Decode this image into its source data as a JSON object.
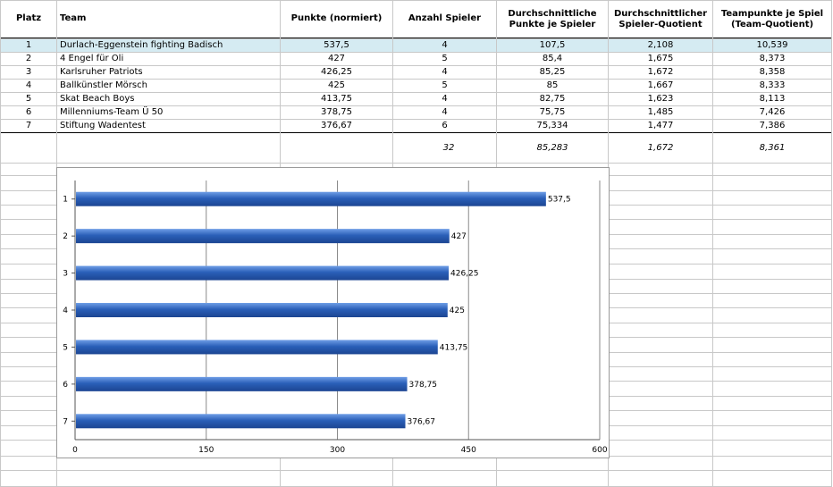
{
  "table": {
    "headers": {
      "platz": "Platz",
      "team": "Team",
      "punkte": "Punkte (normiert)",
      "anzahl": "Anzahl Spieler",
      "dpps_1": "Durchschnittliche",
      "dpps_2": "Punkte je Spieler",
      "dsq_1": "Durchschnittlicher",
      "dsq_2": "Spieler-Quotient",
      "tps_1": "Teampunkte je Spiel",
      "tps_2": "(Team-Quotient)"
    },
    "rows": [
      {
        "platz": "1",
        "team": "Durlach-Eggenstein fighting Badisch",
        "punkte": "537,5",
        "anzahl": "4",
        "dpps": "107,5",
        "dsq": "2,108",
        "tps": "10,539"
      },
      {
        "platz": "2",
        "team": "4 Engel für Oli",
        "punkte": "427",
        "anzahl": "5",
        "dpps": "85,4",
        "dsq": "1,675",
        "tps": "8,373"
      },
      {
        "platz": "3",
        "team": "Karlsruher Patriots",
        "punkte": "426,25",
        "anzahl": "4",
        "dpps": "85,25",
        "dsq": "1,672",
        "tps": "8,358"
      },
      {
        "platz": "4",
        "team": "Ballkünstler Mörsch",
        "punkte": "425",
        "anzahl": "5",
        "dpps": "85",
        "dsq": "1,667",
        "tps": "8,333"
      },
      {
        "platz": "5",
        "team": "Skat Beach Boys",
        "punkte": "413,75",
        "anzahl": "4",
        "dpps": "82,75",
        "dsq": "1,623",
        "tps": "8,113"
      },
      {
        "platz": "6",
        "team": "Millenniums-Team Ü 50",
        "punkte": "378,75",
        "anzahl": "4",
        "dpps": "75,75",
        "dsq": "1,485",
        "tps": "7,426"
      },
      {
        "platz": "7",
        "team": "Stiftung Wadentest",
        "punkte": "376,67",
        "anzahl": "6",
        "dpps": "75,334",
        "dsq": "1,477",
        "tps": "7,386"
      }
    ],
    "totals": {
      "anzahl": "32",
      "dpps": "85,283",
      "dsq": "1,672",
      "tps": "8,361"
    },
    "highlight_color": "#d5ebf2"
  },
  "chart_data": {
    "type": "bar",
    "orientation": "horizontal",
    "categories": [
      "1",
      "2",
      "3",
      "4",
      "5",
      "6",
      "7"
    ],
    "values": [
      537.5,
      427,
      426.25,
      425,
      413.75,
      378.75,
      376.67
    ],
    "value_labels": [
      "537,5",
      "427",
      "426,25",
      "425",
      "413,75",
      "378,75",
      "376,67"
    ],
    "xlim": [
      0,
      600
    ],
    "xticks": [
      "0",
      "150",
      "300",
      "450",
      "600"
    ],
    "xtick_values": [
      0,
      150,
      300,
      450,
      600
    ],
    "grid": true,
    "bar_color": "#2a5fb8",
    "title": "",
    "xlabel": "",
    "ylabel": ""
  }
}
